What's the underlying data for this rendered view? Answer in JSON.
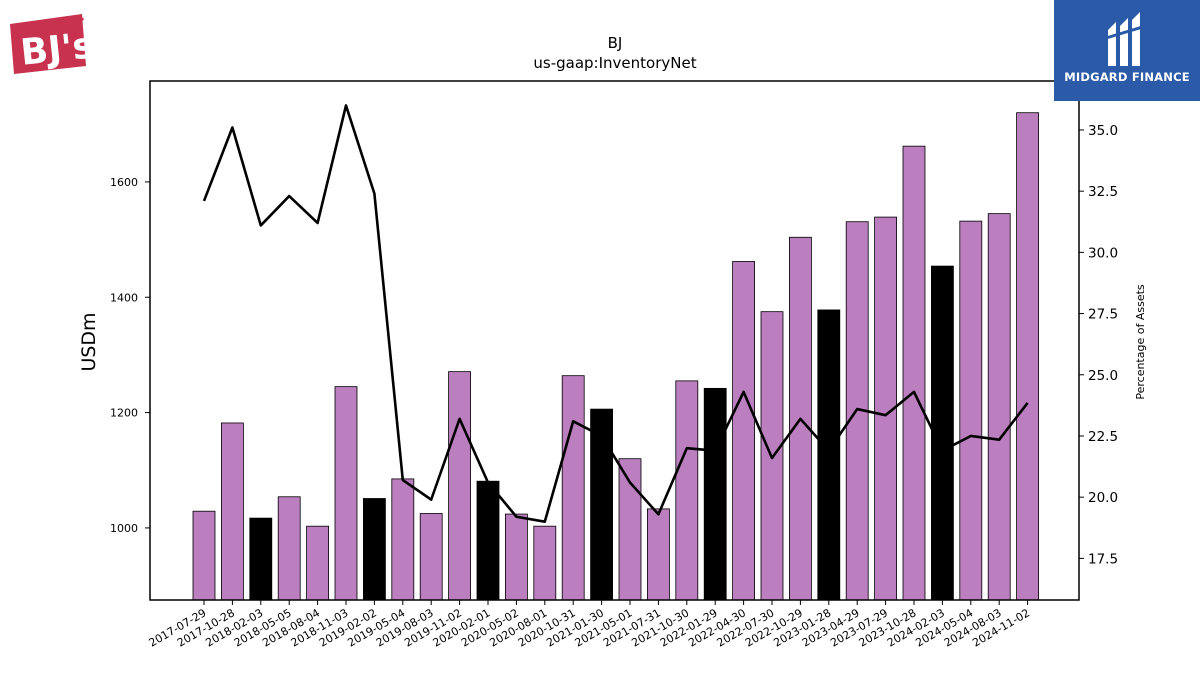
{
  "chart_data": {
    "type": "bar",
    "title": "BJ",
    "subtitle": "us-gaap:InventoryNet",
    "ylabel": "USDm",
    "y2label": "Percentage of Assets",
    "ylim": [
      875,
      1775
    ],
    "y2lim": [
      15.8,
      37.0
    ],
    "yticks": [
      1000,
      1200,
      1400,
      1600
    ],
    "y2ticks": [
      "17.5",
      "20.0",
      "22.5",
      "25.0",
      "27.5",
      "30.0",
      "32.5",
      "35.0"
    ],
    "categories": [
      "2017-07-29",
      "2017-10-28",
      "2018-02-03",
      "2018-05-05",
      "2018-08-04",
      "2018-11-03",
      "2019-02-02",
      "2019-05-04",
      "2019-08-03",
      "2019-11-02",
      "2020-02-01",
      "2020-05-02",
      "2020-08-01",
      "2020-10-31",
      "2021-01-30",
      "2021-05-01",
      "2021-07-31",
      "2021-10-30",
      "2022-01-29",
      "2022-04-30",
      "2022-07-30",
      "2022-10-29",
      "2023-01-28",
      "2023-04-29",
      "2023-07-29",
      "2023-10-28",
      "2024-02-03",
      "2024-05-04",
      "2024-08-03",
      "2024-11-02"
    ],
    "series": [
      {
        "values": [
          1029,
          1182,
          1017,
          1054,
          1003,
          1245,
          1051,
          1085,
          1025,
          1271,
          1081,
          1024,
          1003,
          1264,
          1206,
          1120,
          1033,
          1255,
          1242,
          1462,
          1375,
          1504,
          1378,
          1531,
          1539,
          1662,
          1454,
          1532,
          1545,
          1720
        ],
        "highlight": [
          false,
          false,
          true,
          false,
          false,
          false,
          true,
          false,
          false,
          false,
          true,
          false,
          false,
          false,
          true,
          false,
          false,
          false,
          true,
          false,
          false,
          false,
          true,
          false,
          false,
          false,
          true,
          false,
          false,
          false
        ],
        "color": "#bb7ebe",
        "highlight_color": "#000000"
      },
      {
        "axis": "right",
        "type": "line",
        "values": [
          32.1,
          35.1,
          31.1,
          32.3,
          31.2,
          36.0,
          32.4,
          20.7,
          19.9,
          23.2,
          20.6,
          19.2,
          19.0,
          23.1,
          22.5,
          20.6,
          19.3,
          22.0,
          21.9,
          24.3,
          21.6,
          23.2,
          21.9,
          23.6,
          23.35,
          24.3,
          21.9,
          22.5,
          22.35,
          23.85
        ],
        "color": "#000000"
      }
    ],
    "grid": false,
    "legend": "none"
  },
  "logos": {
    "left": "BJ's",
    "right": "MIDGARD FINANCE"
  }
}
